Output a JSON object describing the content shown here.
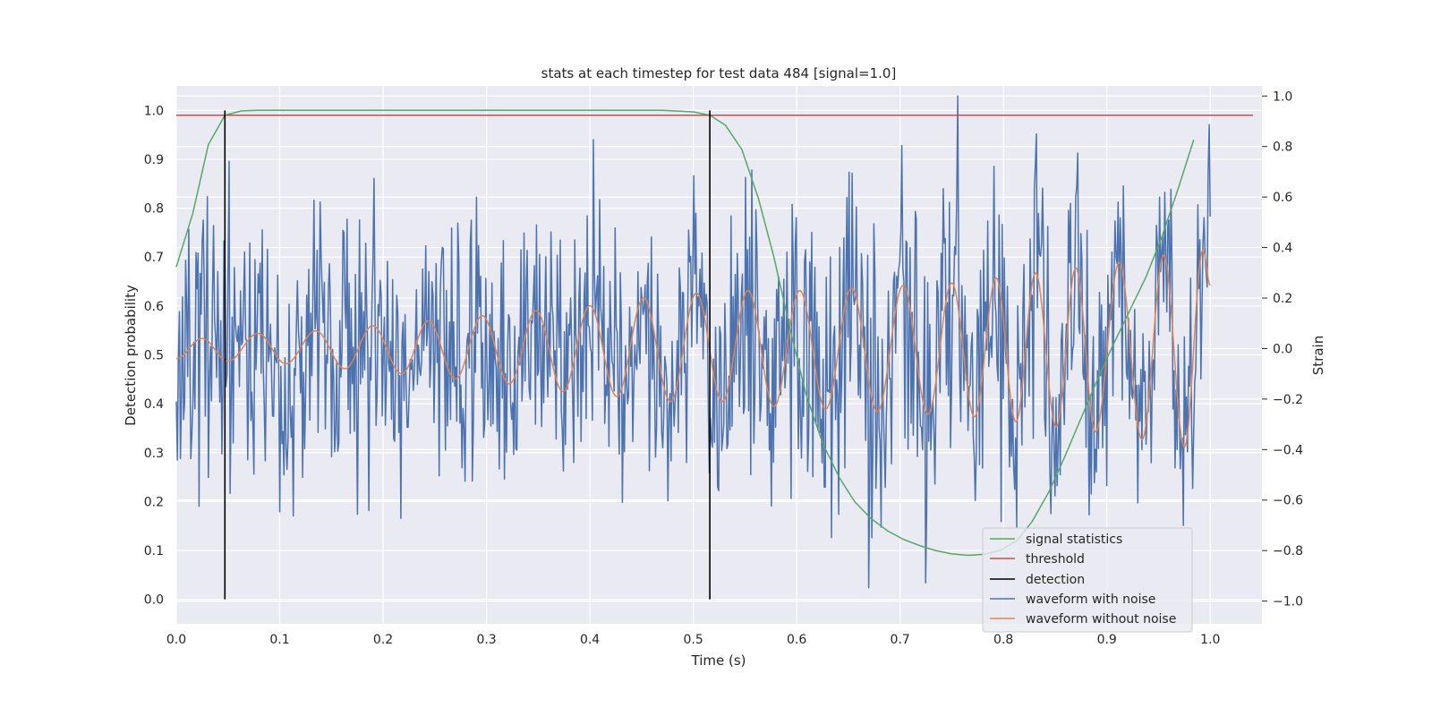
{
  "chart_data": {
    "type": "line",
    "title": "stats at each timestep for test data 484 [signal=1.0]",
    "xlabel": "Time (s)",
    "ylabel": "Detection probability",
    "y2label": "Strain",
    "xlim": [
      0.0,
      1.05
    ],
    "ylim": [
      -0.05,
      1.05
    ],
    "y2lim": [
      -1.09,
      1.04
    ],
    "x_ticks": [
      "0.0",
      "0.1",
      "0.2",
      "0.3",
      "0.4",
      "0.5",
      "0.6",
      "0.7",
      "0.8",
      "0.9",
      "1.0"
    ],
    "y_ticks": [
      "0.0",
      "0.1",
      "0.2",
      "0.3",
      "0.4",
      "0.5",
      "0.6",
      "0.7",
      "0.8",
      "0.9",
      "1.0"
    ],
    "y2_ticks": [
      "−1.0",
      "−0.8",
      "−0.6",
      "−0.4",
      "−0.2",
      "0.0",
      "0.2",
      "0.4",
      "0.6",
      "0.8",
      "1.0"
    ],
    "grid": true,
    "legend_position": "lower-right",
    "colors": {
      "signal_statistics": "#55a868",
      "threshold": "#c44e52",
      "detection": "#000000",
      "waveform_with_noise": "#4c72b0",
      "waveform_without_noise": "#dd8452",
      "plot_background": "#eaeaf2",
      "grid": "#ffffff"
    },
    "series": [
      {
        "name": "signal statistics",
        "axis": "left",
        "x": [
          0.0,
          0.016,
          0.031,
          0.047,
          0.063,
          0.078,
          0.094,
          0.2,
          0.3,
          0.4,
          0.47,
          0.5,
          0.516,
          0.531,
          0.547,
          0.563,
          0.578,
          0.594,
          0.609,
          0.625,
          0.641,
          0.656,
          0.672,
          0.688,
          0.703,
          0.719,
          0.734,
          0.75,
          0.766,
          0.781,
          0.797,
          0.813,
          0.828,
          0.844,
          0.859,
          0.875,
          0.891,
          0.906,
          0.922,
          0.938,
          0.953,
          0.969,
          0.984
        ],
        "values": [
          0.68,
          0.79,
          0.93,
          0.99,
          0.999,
          1.0,
          1.0,
          1.0,
          1.0,
          1.0,
          1.0,
          0.997,
          0.99,
          0.97,
          0.92,
          0.82,
          0.7,
          0.55,
          0.42,
          0.32,
          0.25,
          0.2,
          0.165,
          0.14,
          0.123,
          0.11,
          0.1,
          0.093,
          0.09,
          0.092,
          0.1,
          0.12,
          0.16,
          0.22,
          0.29,
          0.37,
          0.45,
          0.52,
          0.59,
          0.66,
          0.74,
          0.84,
          0.94
        ]
      },
      {
        "name": "threshold",
        "axis": "left",
        "x": [
          0.0,
          1.05
        ],
        "values": [
          0.99,
          0.99
        ]
      },
      {
        "name": "detection",
        "axis": "left",
        "segments": [
          {
            "x": 0.047,
            "y": [
              0.0,
              1.0
            ]
          },
          {
            "x": 0.516,
            "y": [
              0.0,
              1.0
            ]
          }
        ]
      },
      {
        "name": "waveform with noise",
        "axis": "right",
        "x_range": [
          0.0,
          1.0
        ],
        "n_points": 1000,
        "noise_amplitude": 0.28,
        "min": -1.0,
        "max": 1.0
      },
      {
        "name": "waveform without noise",
        "axis": "right",
        "x_range": [
          0.0,
          1.0
        ],
        "n_points": 1000,
        "peaks": [
          {
            "x": 0.0,
            "y": -0.04
          },
          {
            "x": 0.025,
            "y": 0.04
          },
          {
            "x": 0.05,
            "y": -0.05
          },
          {
            "x": 0.079,
            "y": 0.06
          },
          {
            "x": 0.106,
            "y": -0.06
          },
          {
            "x": 0.135,
            "y": 0.07
          },
          {
            "x": 0.163,
            "y": -0.08
          },
          {
            "x": 0.19,
            "y": 0.09
          },
          {
            "x": 0.218,
            "y": -0.1
          },
          {
            "x": 0.244,
            "y": 0.11
          },
          {
            "x": 0.27,
            "y": -0.12
          },
          {
            "x": 0.296,
            "y": 0.13
          },
          {
            "x": 0.322,
            "y": -0.14
          },
          {
            "x": 0.348,
            "y": 0.15
          },
          {
            "x": 0.374,
            "y": -0.17
          },
          {
            "x": 0.4,
            "y": 0.17
          },
          {
            "x": 0.426,
            "y": -0.19
          },
          {
            "x": 0.452,
            "y": 0.2
          },
          {
            "x": 0.478,
            "y": -0.21
          },
          {
            "x": 0.503,
            "y": 0.22
          },
          {
            "x": 0.528,
            "y": -0.21
          },
          {
            "x": 0.553,
            "y": 0.23
          },
          {
            "x": 0.578,
            "y": -0.23
          },
          {
            "x": 0.603,
            "y": 0.23
          },
          {
            "x": 0.628,
            "y": -0.24
          },
          {
            "x": 0.653,
            "y": 0.24
          },
          {
            "x": 0.678,
            "y": -0.25
          },
          {
            "x": 0.703,
            "y": 0.25
          },
          {
            "x": 0.727,
            "y": -0.26
          },
          {
            "x": 0.75,
            "y": 0.26
          },
          {
            "x": 0.772,
            "y": -0.27
          },
          {
            "x": 0.793,
            "y": 0.28
          },
          {
            "x": 0.812,
            "y": -0.29
          },
          {
            "x": 0.831,
            "y": 0.3
          },
          {
            "x": 0.851,
            "y": -0.31
          },
          {
            "x": 0.87,
            "y": 0.32
          },
          {
            "x": 0.889,
            "y": -0.33
          },
          {
            "x": 0.912,
            "y": 0.34
          },
          {
            "x": 0.934,
            "y": -0.36
          },
          {
            "x": 0.955,
            "y": 0.37
          },
          {
            "x": 0.975,
            "y": -0.39
          },
          {
            "x": 0.993,
            "y": 0.39
          },
          {
            "x": 1.0,
            "y": 0.25
          }
        ]
      }
    ]
  }
}
